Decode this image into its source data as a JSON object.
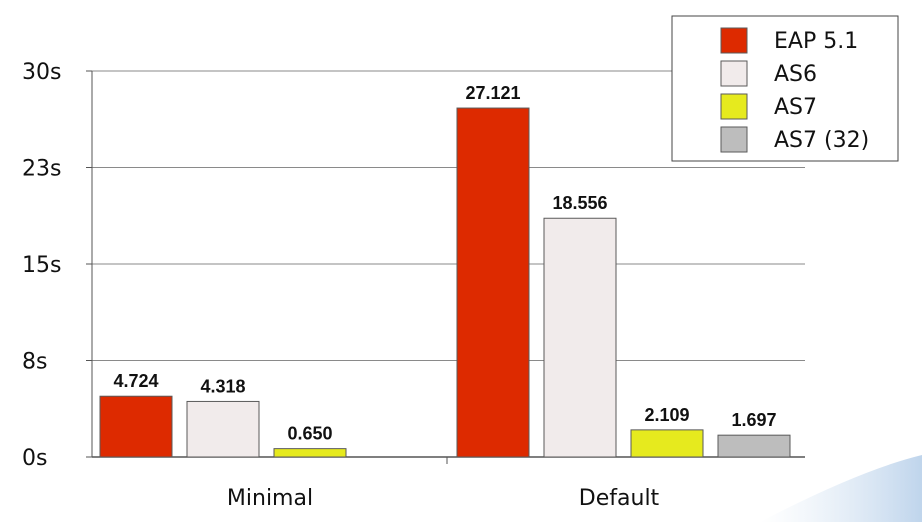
{
  "chart_data": {
    "type": "bar",
    "categories": [
      "Minimal",
      "Default"
    ],
    "series": [
      {
        "name": "EAP 5.1",
        "color": "#dd2a00",
        "values": [
          4.724,
          27.121
        ]
      },
      {
        "name": "AS6",
        "color": "#f1ebeb",
        "values": [
          4.318,
          18.556
        ]
      },
      {
        "name": "AS7",
        "color": "#e6ea1e",
        "values": [
          0.65,
          2.109
        ]
      },
      {
        "name": "AS7 (32)",
        "color": "#bdbdbd",
        "values": [
          null,
          1.697
        ]
      }
    ],
    "data_labels": [
      [
        "4.724",
        "27.121"
      ],
      [
        "4.318",
        "18.556"
      ],
      [
        "0.650",
        "2.109"
      ],
      [
        "",
        "1.697"
      ]
    ],
    "yticks": [
      0,
      7.5,
      15,
      22.5,
      30
    ],
    "ytick_labels": [
      "0s",
      "8s",
      "15s",
      "23s",
      "30s"
    ],
    "ylim": [
      0,
      30
    ],
    "grid": true,
    "legend_position": "top-right",
    "title": "",
    "xlabel": "",
    "ylabel": ""
  }
}
